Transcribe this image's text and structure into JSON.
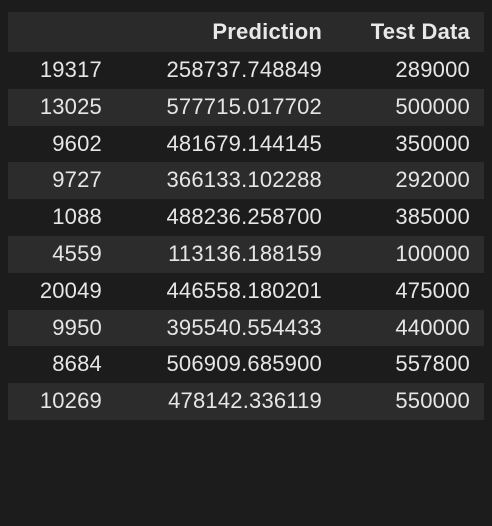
{
  "table": {
    "columns": [
      "",
      "Prediction",
      "Test Data"
    ],
    "rows": [
      {
        "index": "19317",
        "prediction": "258737.748849",
        "test": "289000"
      },
      {
        "index": "13025",
        "prediction": "577715.017702",
        "test": "500000"
      },
      {
        "index": "9602",
        "prediction": "481679.144145",
        "test": "350000"
      },
      {
        "index": "9727",
        "prediction": "366133.102288",
        "test": "292000"
      },
      {
        "index": "1088",
        "prediction": "488236.258700",
        "test": "385000"
      },
      {
        "index": "4559",
        "prediction": "113136.188159",
        "test": "100000"
      },
      {
        "index": "20049",
        "prediction": "446558.180201",
        "test": "475000"
      },
      {
        "index": "9950",
        "prediction": "395540.554433",
        "test": "440000"
      },
      {
        "index": "8684",
        "prediction": "506909.685900",
        "test": "557800"
      },
      {
        "index": "10269",
        "prediction": "478142.336119",
        "test": "550000"
      }
    ]
  }
}
